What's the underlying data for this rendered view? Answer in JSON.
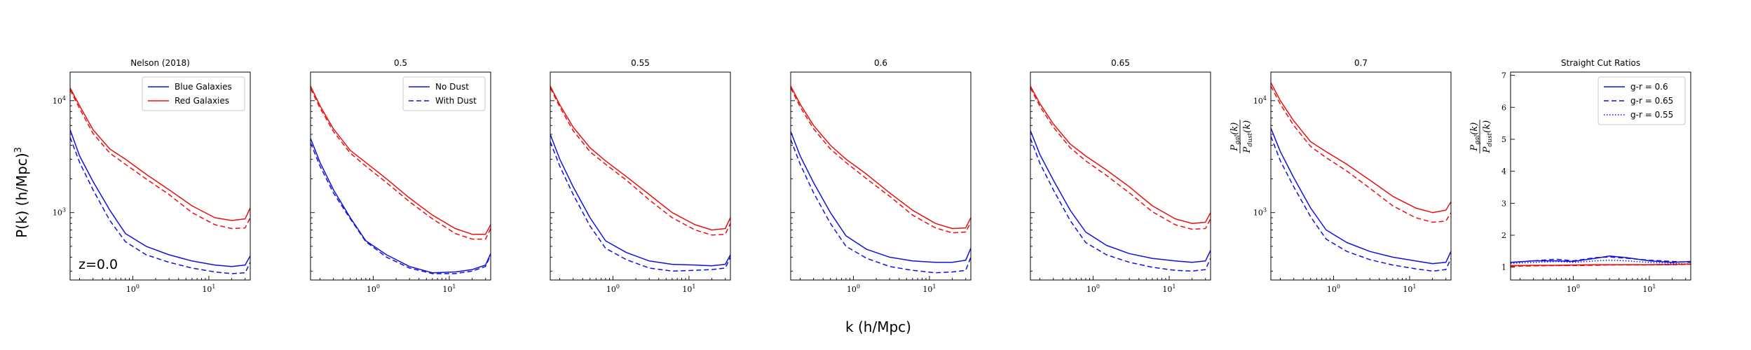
{
  "figure": {
    "xlabel": "k (h/Mpc)",
    "ylabel": "P(k) (h/Mpc)$^3$",
    "ylabel_text": "P(k) (h/Mpc)",
    "ylabel_sup": "3"
  },
  "colors": {
    "blue": "#1010e0",
    "red": "#e81010"
  },
  "chart_data": [
    {
      "type": "line",
      "title": "Nelson (2018)",
      "xscale": "log",
      "yscale": "log",
      "xlim": [
        0.15,
        35
      ],
      "ylim": [
        250,
        18000
      ],
      "xticks": [
        "10^0",
        "10^1"
      ],
      "yticks": [
        "10^3",
        "10^4"
      ],
      "annotation": "z=0.0",
      "legend": {
        "loc": "upper right",
        "entries": [
          {
            "label": "Blue Galaxies",
            "color": "#1010e0",
            "style": "solid"
          },
          {
            "label": "Red Galaxies",
            "color": "#e81010",
            "style": "solid"
          }
        ]
      },
      "series": [
        {
          "color": "#e81010",
          "style": "solid",
          "x": [
            0.15,
            0.2,
            0.3,
            0.5,
            0.8,
            1.5,
            3,
            6,
            12,
            20,
            30,
            35
          ],
          "y": [
            13000,
            9000,
            5500,
            3700,
            3000,
            2200,
            1600,
            1150,
            900,
            850,
            880,
            1100
          ]
        },
        {
          "color": "#e81010",
          "style": "dashed",
          "x": [
            0.15,
            0.2,
            0.3,
            0.5,
            0.8,
            1.5,
            3,
            6,
            12,
            20,
            30,
            35
          ],
          "y": [
            12500,
            8500,
            5100,
            3400,
            2700,
            2000,
            1450,
            1000,
            780,
            720,
            730,
            900
          ]
        },
        {
          "name": "Blue Galaxies",
          "color": "#1010e0",
          "style": "solid",
          "x": [
            0.15,
            0.2,
            0.3,
            0.5,
            0.8,
            1.5,
            3,
            6,
            12,
            20,
            30,
            35
          ],
          "y": [
            5500,
            3200,
            1900,
            1050,
            650,
            500,
            420,
            370,
            340,
            330,
            340,
            410
          ]
        },
        {
          "color": "#1010e0",
          "style": "dashed",
          "x": [
            0.15,
            0.2,
            0.3,
            0.5,
            0.8,
            1.5,
            3,
            6,
            12,
            20,
            30,
            35
          ],
          "y": [
            4700,
            2800,
            1600,
            850,
            550,
            420,
            360,
            320,
            295,
            285,
            290,
            360
          ]
        }
      ]
    },
    {
      "type": "line",
      "title": "0.5",
      "xscale": "log",
      "yscale": "log",
      "xlim": [
        0.15,
        35
      ],
      "ylim": [
        250,
        18000
      ],
      "xticks": [
        "10^0",
        "10^1"
      ],
      "legend": {
        "loc": "upper right",
        "entries": [
          {
            "label": "No Dust",
            "color": "#1010e0",
            "style": "solid"
          },
          {
            "label": "With Dust",
            "color": "#1010e0",
            "style": "dashed"
          }
        ]
      },
      "series": [
        {
          "color": "#e81010",
          "style": "solid",
          "x": [
            0.15,
            0.2,
            0.3,
            0.5,
            0.8,
            1.5,
            3,
            6,
            12,
            20,
            30,
            35
          ],
          "y": [
            13500,
            9000,
            5600,
            3600,
            2800,
            2000,
            1350,
            950,
            720,
            640,
            640,
            780
          ]
        },
        {
          "color": "#e81010",
          "style": "dashed",
          "x": [
            0.15,
            0.2,
            0.3,
            0.5,
            0.8,
            1.5,
            3,
            6,
            12,
            20,
            30,
            35
          ],
          "y": [
            12800,
            8600,
            5300,
            3400,
            2600,
            1850,
            1250,
            880,
            650,
            580,
            580,
            720
          ]
        },
        {
          "color": "#1010e0",
          "style": "solid",
          "x": [
            0.15,
            0.2,
            0.3,
            0.5,
            0.8,
            1.5,
            3,
            6,
            12,
            20,
            30,
            35
          ],
          "y": [
            4600,
            2800,
            1600,
            900,
            560,
            420,
            330,
            290,
            295,
            310,
            340,
            430
          ]
        },
        {
          "color": "#1010e0",
          "style": "dashed",
          "x": [
            0.15,
            0.2,
            0.3,
            0.5,
            0.8,
            1.5,
            3,
            6,
            12,
            20,
            30,
            35
          ],
          "y": [
            4200,
            2600,
            1500,
            880,
            550,
            400,
            320,
            285,
            285,
            300,
            330,
            420
          ]
        }
      ]
    },
    {
      "type": "line",
      "title": "0.55",
      "xscale": "log",
      "yscale": "log",
      "xlim": [
        0.15,
        35
      ],
      "ylim": [
        250,
        18000
      ],
      "xticks": [
        "10^0",
        "10^1"
      ],
      "series": [
        {
          "color": "#e81010",
          "style": "solid",
          "x": [
            0.15,
            0.2,
            0.3,
            0.5,
            0.8,
            1.5,
            3,
            6,
            12,
            20,
            30,
            35
          ],
          "y": [
            13500,
            9200,
            5800,
            3800,
            2900,
            2100,
            1450,
            1000,
            780,
            700,
            720,
            900
          ]
        },
        {
          "color": "#e81010",
          "style": "dashed",
          "x": [
            0.15,
            0.2,
            0.3,
            0.5,
            0.8,
            1.5,
            3,
            6,
            12,
            20,
            30,
            35
          ],
          "y": [
            13000,
            8800,
            5400,
            3500,
            2700,
            1950,
            1300,
            900,
            700,
            630,
            640,
            800
          ]
        },
        {
          "color": "#1010e0",
          "style": "solid",
          "x": [
            0.15,
            0.2,
            0.3,
            0.5,
            0.8,
            1.5,
            3,
            6,
            12,
            20,
            30,
            35
          ],
          "y": [
            5000,
            3000,
            1700,
            900,
            560,
            440,
            370,
            345,
            340,
            335,
            345,
            420
          ]
        },
        {
          "color": "#1010e0",
          "style": "dashed",
          "x": [
            0.15,
            0.2,
            0.3,
            0.5,
            0.8,
            1.5,
            3,
            6,
            12,
            20,
            30,
            35
          ],
          "y": [
            4300,
            2600,
            1450,
            760,
            480,
            380,
            320,
            300,
            305,
            310,
            320,
            400
          ]
        }
      ]
    },
    {
      "type": "line",
      "title": "0.6",
      "xscale": "log",
      "yscale": "log",
      "xlim": [
        0.15,
        35
      ],
      "ylim": [
        250,
        18000
      ],
      "xticks": [
        "10^0",
        "10^1"
      ],
      "series": [
        {
          "color": "#e81010",
          "style": "solid",
          "x": [
            0.15,
            0.2,
            0.3,
            0.5,
            0.8,
            1.5,
            3,
            6,
            12,
            20,
            30,
            35
          ],
          "y": [
            13500,
            9300,
            6000,
            4000,
            3000,
            2200,
            1500,
            1050,
            800,
            720,
            730,
            900
          ]
        },
        {
          "color": "#e81010",
          "style": "dashed",
          "x": [
            0.15,
            0.2,
            0.3,
            0.5,
            0.8,
            1.5,
            3,
            6,
            12,
            20,
            30,
            35
          ],
          "y": [
            13000,
            8800,
            5600,
            3700,
            2800,
            2000,
            1400,
            950,
            730,
            660,
            670,
            820
          ]
        },
        {
          "color": "#1010e0",
          "style": "solid",
          "x": [
            0.15,
            0.2,
            0.3,
            0.5,
            0.8,
            1.5,
            3,
            6,
            12,
            20,
            30,
            35
          ],
          "y": [
            5300,
            3200,
            1850,
            1000,
            620,
            470,
            400,
            370,
            360,
            360,
            375,
            480
          ]
        },
        {
          "color": "#1010e0",
          "style": "dashed",
          "x": [
            0.15,
            0.2,
            0.3,
            0.5,
            0.8,
            1.5,
            3,
            6,
            12,
            20,
            30,
            35
          ],
          "y": [
            4500,
            2700,
            1500,
            800,
            500,
            390,
            330,
            305,
            290,
            295,
            305,
            400
          ]
        }
      ]
    },
    {
      "type": "line",
      "title": "0.65",
      "xscale": "log",
      "yscale": "log",
      "xlim": [
        0.15,
        35
      ],
      "ylim": [
        250,
        18000
      ],
      "xticks": [
        "10^0",
        "10^1"
      ],
      "series": [
        {
          "color": "#e81010",
          "style": "solid",
          "x": [
            0.15,
            0.2,
            0.3,
            0.5,
            0.8,
            1.5,
            3,
            6,
            12,
            20,
            30,
            35
          ],
          "y": [
            13500,
            9400,
            6200,
            4100,
            3200,
            2400,
            1700,
            1150,
            880,
            800,
            820,
            1000
          ]
        },
        {
          "color": "#e81010",
          "style": "dashed",
          "x": [
            0.15,
            0.2,
            0.3,
            0.5,
            0.8,
            1.5,
            3,
            6,
            12,
            20,
            30,
            35
          ],
          "y": [
            13000,
            8900,
            5800,
            3800,
            2900,
            2150,
            1500,
            1020,
            780,
            710,
            720,
            880
          ]
        },
        {
          "color": "#1010e0",
          "style": "solid",
          "x": [
            0.15,
            0.2,
            0.3,
            0.5,
            0.8,
            1.5,
            3,
            6,
            12,
            20,
            30,
            35
          ],
          "y": [
            5400,
            3300,
            1950,
            1050,
            670,
            510,
            430,
            390,
            370,
            360,
            370,
            460
          ]
        },
        {
          "color": "#1010e0",
          "style": "dashed",
          "x": [
            0.15,
            0.2,
            0.3,
            0.5,
            0.8,
            1.5,
            3,
            6,
            12,
            20,
            30,
            35
          ],
          "y": [
            4600,
            2750,
            1600,
            850,
            540,
            420,
            360,
            325,
            305,
            300,
            310,
            390
          ]
        }
      ]
    },
    {
      "type": "line",
      "title": "0.7",
      "xscale": "log",
      "yscale": "log",
      "xlim": [
        0.15,
        35
      ],
      "ylim": [
        250,
        18000
      ],
      "xticks": [
        "10^0",
        "10^1"
      ],
      "yticks": [
        "10^3",
        "10^4"
      ],
      "ylabel": "$\\frac{P_{gal}(k)}{P_{dust}(k)}$",
      "series": [
        {
          "color": "#e81010",
          "style": "solid",
          "x": [
            0.15,
            0.2,
            0.3,
            0.5,
            0.8,
            1.5,
            3,
            6,
            12,
            20,
            30,
            35
          ],
          "y": [
            14500,
            10000,
            6600,
            4300,
            3500,
            2700,
            1950,
            1400,
            1100,
            1000,
            1050,
            1250
          ]
        },
        {
          "color": "#e81010",
          "style": "dashed",
          "x": [
            0.15,
            0.2,
            0.3,
            0.5,
            0.8,
            1.5,
            3,
            6,
            12,
            20,
            30,
            35
          ],
          "y": [
            13500,
            9300,
            6000,
            3900,
            3100,
            2350,
            1650,
            1150,
            900,
            820,
            840,
            1000
          ]
        },
        {
          "color": "#1010e0",
          "style": "solid",
          "x": [
            0.15,
            0.2,
            0.3,
            0.5,
            0.8,
            1.5,
            3,
            6,
            12,
            20,
            30,
            35
          ],
          "y": [
            5700,
            3500,
            2050,
            1100,
            700,
            540,
            450,
            400,
            370,
            350,
            360,
            450
          ]
        },
        {
          "color": "#1010e0",
          "style": "dashed",
          "x": [
            0.15,
            0.2,
            0.3,
            0.5,
            0.8,
            1.5,
            3,
            6,
            12,
            20,
            30,
            35
          ],
          "y": [
            4800,
            2900,
            1700,
            920,
            580,
            450,
            380,
            340,
            315,
            300,
            310,
            390
          ]
        }
      ]
    },
    {
      "type": "line",
      "title": "Straight Cut Ratios",
      "xscale": "log",
      "yscale": "linear",
      "xlim": [
        0.15,
        35
      ],
      "ylim": [
        0.6,
        7.1
      ],
      "xticks": [
        "10^0",
        "10^1"
      ],
      "yticks": [
        "1",
        "2",
        "3",
        "4",
        "5",
        "6",
        "7"
      ],
      "ylabel": "$\\frac{P_{gal}(k)}{P_{dust}(k)}$",
      "legend": {
        "loc": "upper right",
        "entries": [
          {
            "label": "g-r = 0.6",
            "color": "#1010e0",
            "style": "solid"
          },
          {
            "label": "g-r = 0.65",
            "color": "#1010e0",
            "style": "dashed"
          },
          {
            "label": "g-r = 0.55",
            "color": "#1010e0",
            "style": "dotted"
          }
        ]
      },
      "series": [
        {
          "color": "#1010e0",
          "style": "solid",
          "x": [
            0.15,
            0.3,
            0.6,
            1,
            2,
            3,
            5,
            10,
            20,
            35
          ],
          "y": [
            1.15,
            1.2,
            1.2,
            1.18,
            1.28,
            1.35,
            1.3,
            1.2,
            1.15,
            1.18
          ]
        },
        {
          "color": "#1010e0",
          "style": "dashed",
          "x": [
            0.15,
            0.3,
            0.6,
            1,
            2,
            3,
            5,
            10,
            20,
            35
          ],
          "y": [
            1.15,
            1.2,
            1.25,
            1.2,
            1.3,
            1.32,
            1.28,
            1.22,
            1.18,
            1.15
          ]
        },
        {
          "color": "#1010e0",
          "style": "dotted",
          "x": [
            0.15,
            0.3,
            0.6,
            1,
            2,
            3,
            5,
            10,
            20,
            35
          ],
          "y": [
            1.12,
            1.15,
            1.18,
            1.15,
            1.2,
            1.22,
            1.2,
            1.15,
            1.12,
            1.1
          ]
        },
        {
          "color": "#e81010",
          "style": "solid",
          "x": [
            0.15,
            0.3,
            0.6,
            1,
            2,
            3,
            5,
            10,
            20,
            35
          ],
          "y": [
            1.05,
            1.06,
            1.06,
            1.07,
            1.08,
            1.08,
            1.08,
            1.08,
            1.09,
            1.1
          ]
        },
        {
          "color": "#e81010",
          "style": "dashed",
          "x": [
            0.15,
            0.3,
            0.6,
            1,
            2,
            3,
            5,
            10,
            20,
            35
          ],
          "y": [
            1.03,
            1.04,
            1.05,
            1.05,
            1.06,
            1.07,
            1.07,
            1.07,
            1.08,
            1.09
          ]
        },
        {
          "color": "#e81010",
          "style": "dotted",
          "x": [
            0.15,
            0.3,
            0.6,
            1,
            2,
            3,
            5,
            10,
            20,
            35
          ],
          "y": [
            1.04,
            1.05,
            1.05,
            1.06,
            1.07,
            1.07,
            1.08,
            1.08,
            1.08,
            1.09
          ]
        }
      ]
    }
  ]
}
